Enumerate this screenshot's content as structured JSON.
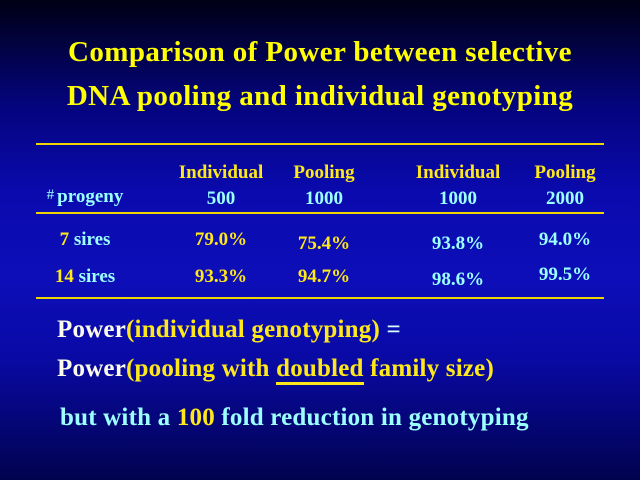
{
  "title": {
    "line1": "Comparison of Power between selective",
    "line2": "DNA pooling and individual genotyping"
  },
  "table": {
    "row_label_hash": "#",
    "row_label_word": "progeny",
    "columns": [
      {
        "method": "Individual",
        "size": "500"
      },
      {
        "method": "Pooling",
        "size": "1000"
      },
      {
        "method": "Individual",
        "size": "1000"
      },
      {
        "method": "Pooling",
        "size": "2000"
      }
    ],
    "rows": [
      {
        "num": "7",
        "word": "sires",
        "values": [
          "79.0%",
          "75.4%",
          "93.8%",
          "94.0%"
        ]
      },
      {
        "num": "14",
        "word": "sires",
        "values": [
          "93.3%",
          "94.7%",
          "98.6%",
          "99.5%"
        ]
      }
    ]
  },
  "notes": {
    "eq1": {
      "prefix": "Power",
      "paren": "(individual genotyping)",
      "suffix": " ="
    },
    "eq2": {
      "prefix": "Power",
      "paren_pre": "(pooling with ",
      "underlined": "doubled",
      "paren_post": " family size)"
    },
    "line3": {
      "pre": "but with a ",
      "highlight": "100",
      "post": " fold reduction in genotyping"
    }
  },
  "colors": {
    "background_top": "#000014",
    "background_mid_blue": "#0d0eb8",
    "background_bottom": "#01024e",
    "title_yellow": "#ffff00",
    "table_gold": "#ffe81a",
    "value_cyan": "#9bffff",
    "power_white": "#fcfaea",
    "rule_yellow": "#efd500"
  }
}
